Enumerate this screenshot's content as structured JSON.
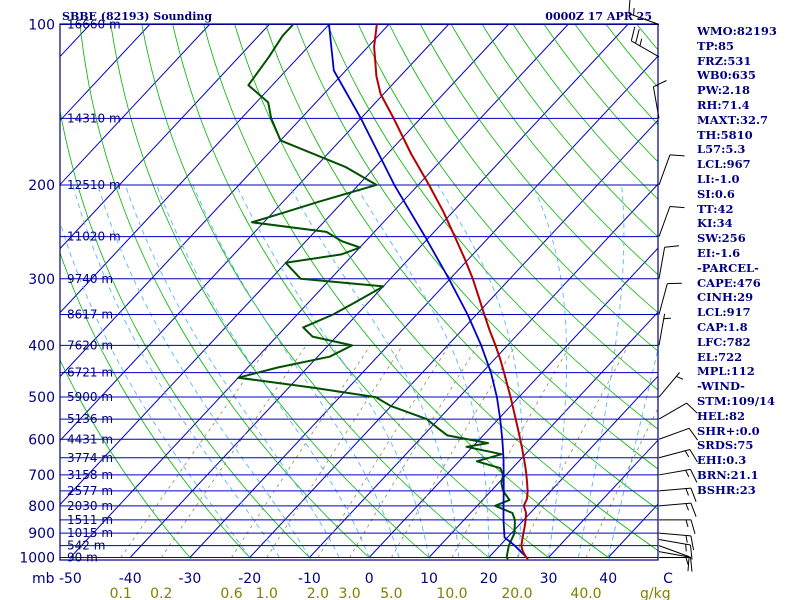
{
  "header": {
    "station": "SBBE (82193) Sounding",
    "time": "0000Z 17 APR 25"
  },
  "indices": [
    "WMO:82193",
    "TP:85",
    "FRZ:531",
    "WB0:635",
    "PW:2.18",
    "RH:71.4",
    "MAXT:32.7",
    "TH:5810",
    "L57:5.3",
    "LCL:967",
    "LI:-1.0",
    "SI:0.6",
    "TT:42",
    "KI:34",
    "SW:256",
    "EI:-1.6",
    "-PARCEL-",
    "CAPE:476",
    "CINH:29",
    "LCL:917",
    "CAP:1.8",
    "LFC:782",
    "EL:722",
    "MPL:112",
    "-WIND-",
    "STM:109/14",
    "HEL:82",
    "SHR+:0.0",
    "SRDS:75",
    "EHI:0.3",
    "BRN:21.1",
    "BSHR:23"
  ],
  "chart_data": {
    "type": "skew-t",
    "pressure_unit_label": "mb",
    "mixing_ratio_unit_label": "g/kg",
    "pressure_levels": [
      {
        "p": 100,
        "label": "100",
        "height": "16660 m"
      },
      {
        "p": 150,
        "label": "",
        "height": "14310 m"
      },
      {
        "p": 200,
        "label": "200",
        "height": "12510 m"
      },
      {
        "p": 250,
        "label": "",
        "height": "11020 m"
      },
      {
        "p": 300,
        "label": "300",
        "height": "9740 m"
      },
      {
        "p": 350,
        "label": "",
        "height": "8617 m"
      },
      {
        "p": 400,
        "label": "400",
        "height": "7620 m"
      },
      {
        "p": 450,
        "label": "",
        "height": "6721 m"
      },
      {
        "p": 500,
        "label": "500",
        "height": "5900 m"
      },
      {
        "p": 550,
        "label": "",
        "height": "5136 m"
      },
      {
        "p": 600,
        "label": "600",
        "height": "4431 m"
      },
      {
        "p": 650,
        "label": "",
        "height": "3774 m"
      },
      {
        "p": 700,
        "label": "700",
        "height": "3158 m"
      },
      {
        "p": 750,
        "label": "",
        "height": "2577 m"
      },
      {
        "p": 800,
        "label": "800",
        "height": "2030 m"
      },
      {
        "p": 850,
        "label": "",
        "height": "1511 m"
      },
      {
        "p": 900,
        "label": "900",
        "height": "1015 m"
      },
      {
        "p": 950,
        "label": "",
        "height": "542 m"
      },
      {
        "p": 1000,
        "label": "1000",
        "height": "90 m"
      }
    ],
    "temperature_ticks": [
      {
        "t": -50,
        "label": "-50"
      },
      {
        "t": -40,
        "label": "-40"
      },
      {
        "t": -30,
        "label": "-30"
      },
      {
        "t": -20,
        "label": "-20"
      },
      {
        "t": -10,
        "label": "-10"
      },
      {
        "t": 0,
        "label": "0"
      },
      {
        "t": 10,
        "label": "10"
      },
      {
        "t": 20,
        "label": "20"
      },
      {
        "t": 30,
        "label": "30"
      },
      {
        "t": 40,
        "label": "40"
      },
      {
        "t": 50,
        "label": "C"
      }
    ],
    "mixing_ratio_labels": [
      {
        "w": 0.1,
        "label": "0.1"
      },
      {
        "w": 0.2,
        "label": "0.2"
      },
      {
        "w": 0.6,
        "label": "0.6"
      },
      {
        "w": 1.0,
        "label": "1.0"
      },
      {
        "w": 2.0,
        "label": "2.0"
      },
      {
        "w": 3.0,
        "label": "3.0"
      },
      {
        "w": 5.0,
        "label": "5.0"
      },
      {
        "w": 10.0,
        "label": "10.0"
      },
      {
        "w": 20.0,
        "label": "20.0"
      },
      {
        "w": 40.0,
        "label": "40.0"
      }
    ],
    "temperature_profile": [
      [
        1006,
        26.8
      ],
      [
        1000,
        26.3
      ],
      [
        975,
        24.8
      ],
      [
        950,
        23.6
      ],
      [
        925,
        22.8
      ],
      [
        900,
        22.0
      ],
      [
        875,
        21.2
      ],
      [
        850,
        20.3
      ],
      [
        825,
        19.3
      ],
      [
        800,
        17.8
      ],
      [
        775,
        17.2
      ],
      [
        750,
        16.1
      ],
      [
        725,
        14.8
      ],
      [
        700,
        13.4
      ],
      [
        675,
        11.9
      ],
      [
        650,
        10.3
      ],
      [
        625,
        8.6
      ],
      [
        600,
        6.8
      ],
      [
        575,
        4.9
      ],
      [
        550,
        2.9
      ],
      [
        525,
        0.8
      ],
      [
        500,
        -1.4
      ],
      [
        475,
        -3.8
      ],
      [
        450,
        -6.3
      ],
      [
        425,
        -9.0
      ],
      [
        400,
        -12.0
      ],
      [
        375,
        -15.3
      ],
      [
        350,
        -18.7
      ],
      [
        325,
        -22.3
      ],
      [
        300,
        -26.2
      ],
      [
        275,
        -30.7
      ],
      [
        250,
        -35.8
      ],
      [
        225,
        -41.5
      ],
      [
        200,
        -48.2
      ],
      [
        175,
        -56.0
      ],
      [
        150,
        -64.5
      ],
      [
        135,
        -70.5
      ],
      [
        125,
        -74.0
      ],
      [
        110,
        -79.0
      ],
      [
        100,
        -82.0
      ]
    ],
    "dewpoint_profile": [
      [
        1006,
        23.5
      ],
      [
        1000,
        23.0
      ],
      [
        950,
        21.5
      ],
      [
        900,
        20.5
      ],
      [
        850,
        18.5
      ],
      [
        825,
        17.0
      ],
      [
        800,
        13.0
      ],
      [
        780,
        14.5
      ],
      [
        750,
        12.0
      ],
      [
        725,
        10.5
      ],
      [
        700,
        9.5
      ],
      [
        680,
        8.0
      ],
      [
        660,
        3.0
      ],
      [
        640,
        6.0
      ],
      [
        620,
        -1.0
      ],
      [
        610,
        2.0
      ],
      [
        590,
        -6.0
      ],
      [
        570,
        -9.0
      ],
      [
        550,
        -12.0
      ],
      [
        520,
        -20.0
      ],
      [
        500,
        -24.0
      ],
      [
        480,
        -36.0
      ],
      [
        460,
        -50.0
      ],
      [
        440,
        -45.0
      ],
      [
        420,
        -38.0
      ],
      [
        400,
        -36.0
      ],
      [
        385,
        -44.0
      ],
      [
        370,
        -47.0
      ],
      [
        350,
        -44.0
      ],
      [
        330,
        -42.0
      ],
      [
        310,
        -40.0
      ],
      [
        300,
        -55.0
      ],
      [
        280,
        -60.0
      ],
      [
        270,
        -52.0
      ],
      [
        262,
        -50.0
      ],
      [
        255,
        -54.0
      ],
      [
        245,
        -58.0
      ],
      [
        235,
        -72.0
      ],
      [
        225,
        -68.0
      ],
      [
        215,
        -64.0
      ],
      [
        200,
        -57.0
      ],
      [
        185,
        -65.0
      ],
      [
        165,
        -80.0
      ],
      [
        150,
        -85.0
      ],
      [
        140,
        -88.0
      ],
      [
        130,
        -94.0
      ],
      [
        115,
        -95.0
      ],
      [
        105,
        -96.0
      ],
      [
        100,
        -96.0
      ]
    ],
    "parcel_profile": [
      [
        1006,
        26.8
      ],
      [
        950,
        22.5
      ],
      [
        917,
        19.5
      ],
      [
        850,
        16.6
      ],
      [
        800,
        14.4
      ],
      [
        750,
        12.1
      ],
      [
        700,
        9.6
      ],
      [
        650,
        6.9
      ],
      [
        600,
        3.8
      ],
      [
        550,
        0.3
      ],
      [
        500,
        -3.7
      ],
      [
        450,
        -8.5
      ],
      [
        400,
        -14.4
      ],
      [
        350,
        -21.5
      ],
      [
        300,
        -30.2
      ],
      [
        250,
        -40.8
      ],
      [
        200,
        -54.0
      ],
      [
        150,
        -70.0
      ],
      [
        122,
        -82.0
      ],
      [
        100,
        -90.0
      ]
    ],
    "wind_barbs": [
      {
        "p": 1000,
        "dir": 90,
        "spd": 5
      },
      {
        "p": 975,
        "dir": 100,
        "spd": 10
      },
      {
        "p": 950,
        "dir": 110,
        "spd": 10
      },
      {
        "p": 925,
        "dir": 100,
        "spd": 15
      },
      {
        "p": 900,
        "dir": 95,
        "spd": 15
      },
      {
        "p": 850,
        "dir": 90,
        "spd": 15
      },
      {
        "p": 800,
        "dir": 85,
        "spd": 15
      },
      {
        "p": 750,
        "dir": 85,
        "spd": 15
      },
      {
        "p": 700,
        "dir": 80,
        "spd": 15
      },
      {
        "p": 650,
        "dir": 75,
        "spd": 15
      },
      {
        "p": 600,
        "dir": 70,
        "spd": 10
      },
      {
        "p": 550,
        "dir": 60,
        "spd": 10
      },
      {
        "p": 500,
        "dir": 40,
        "spd": 5
      },
      {
        "p": 400,
        "dir": 10,
        "spd": 5
      },
      {
        "p": 350,
        "dir": 15,
        "spd": 10
      },
      {
        "p": 300,
        "dir": 10,
        "spd": 10
      },
      {
        "p": 250,
        "dir": 20,
        "spd": 10
      },
      {
        "p": 200,
        "dir": 20,
        "spd": 10
      },
      {
        "p": 150,
        "dir": 350,
        "spd": 10
      },
      {
        "p": 115,
        "dir": 300,
        "spd": 25
      },
      {
        "p": 100,
        "dir": 290,
        "spd": 15
      }
    ],
    "colors": {
      "frame": "#000080",
      "isobar": "#0000c0",
      "isotherm": "#0000c0",
      "dry_adiabat": "#00b400",
      "moist_adiabat": "#5ab4ff",
      "mixing_ratio": "#8c8c50",
      "temperature": "#b40000",
      "dewpoint": "#005000",
      "parcel": "#0000c8",
      "wind": "#000000",
      "mixing_label": "#808000"
    }
  }
}
